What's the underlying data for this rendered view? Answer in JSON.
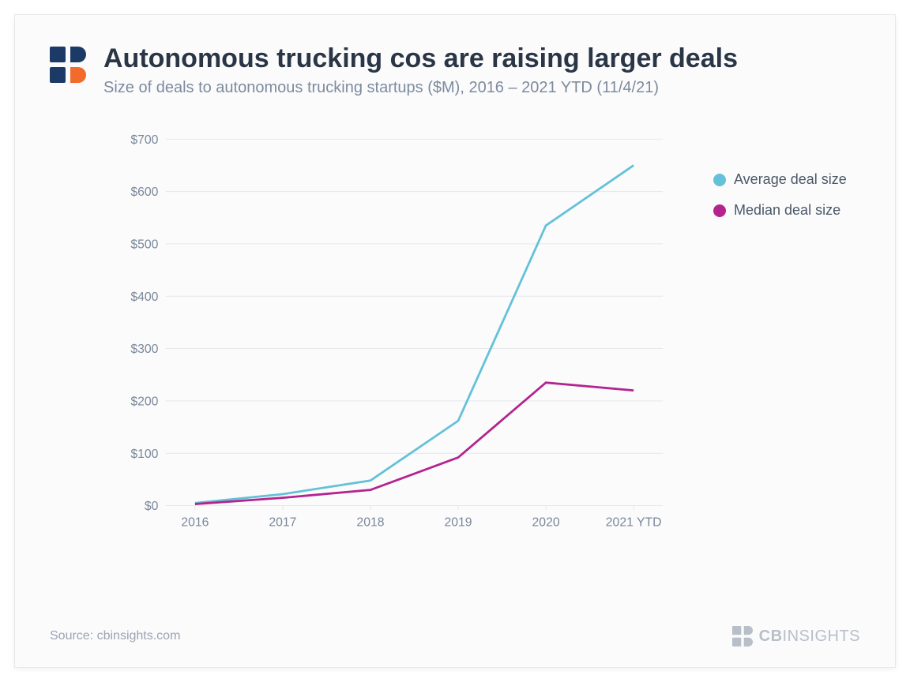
{
  "header": {
    "title": "Autonomous trucking cos are raising larger deals",
    "subtitle": "Size of deals to autonomous trucking startups ($M), 2016 – 2021 YTD (11/4/21)"
  },
  "logo": {
    "square_color": "#1b3a66",
    "accent_color": "#f26b2b"
  },
  "chart": {
    "type": "line",
    "background_color": "#fbfbfc",
    "grid_color": "#e3e6ea",
    "axis_text_color": "#7a8799",
    "axis_fontsize": 17,
    "y": {
      "min": 0,
      "max": 700,
      "step": 100,
      "prefix": "$"
    },
    "x": {
      "categories": [
        "2016",
        "2017",
        "2018",
        "2019",
        "2020",
        "2021 YTD"
      ]
    },
    "line_width": 3,
    "series": [
      {
        "name": "Average deal size",
        "color": "#64c1d8",
        "values": [
          5,
          22,
          48,
          162,
          535,
          650
        ]
      },
      {
        "name": "Median deal size",
        "color": "#b3248f",
        "values": [
          3,
          15,
          30,
          92,
          235,
          220
        ]
      }
    ]
  },
  "legend": {
    "items": [
      {
        "label": "Average deal size",
        "color": "#64c1d8"
      },
      {
        "label": "Median deal size",
        "color": "#b3248f"
      }
    ],
    "fontsize": 18,
    "text_color": "#4b5868"
  },
  "footer": {
    "source": "Source: cbinsights.com",
    "brand_bold": "CB",
    "brand_rest": "INSIGHTS",
    "brand_color": "#b7bfc9"
  }
}
